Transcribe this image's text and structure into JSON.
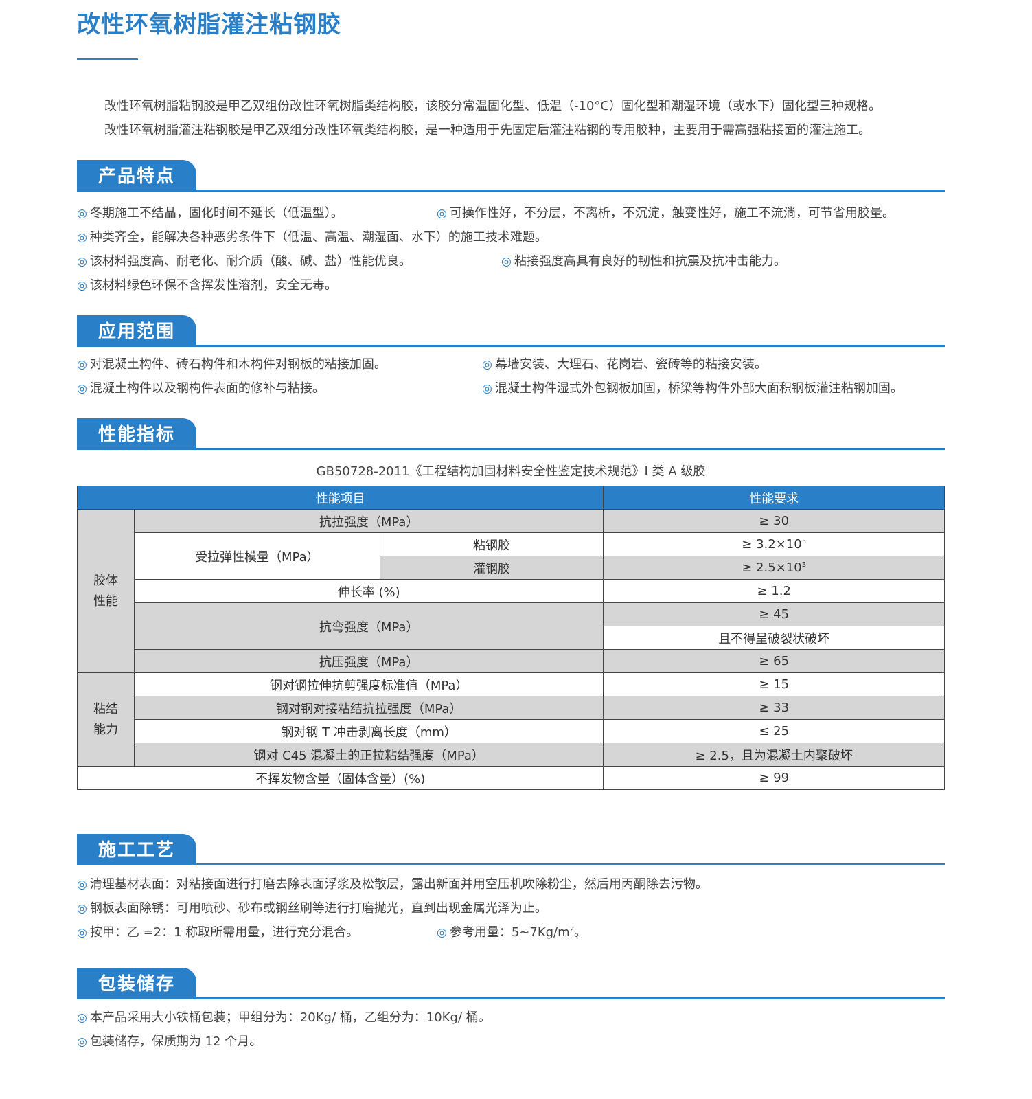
{
  "title": "改性环氧树脂灌注粘钢胶",
  "intro": [
    "改性环氧树脂粘钢胶是甲乙双组份改性环氧树脂类结构胶，该胶分常温固化型、低温（-10°C）固化型和潮湿环境（或水下）固化型三种规格。",
    "改性环氧树脂灌注粘钢胶是甲乙双组分改性环氧类结构胶，是一种适用于先固定后灌注粘钢的专用胶种，主要用于需高强粘接面的灌注施工。"
  ],
  "bullet_icon": "double-circle-icon",
  "accent_color": "#2a80c8",
  "sections": {
    "features": {
      "title": "产品特点",
      "items": [
        "冬期施工不结晶，固化时间不延长（低温型）。",
        "可操作性好，不分层，不离析，不沉淀，触变性好，施工不流淌，可节省用胶量。",
        "种类齐全，能解决各种恶劣条件下（低温、高温、潮湿面、水下）的施工技术难题。",
        "该材料强度高、耐老化、耐介质（酸、碱、盐）性能优良。",
        "粘接强度高具有良好的韧性和抗震及抗冲击能力。",
        "该材料绿色环保不含挥发性溶剂，安全无毒。"
      ]
    },
    "application": {
      "title": "应用范围",
      "items": [
        "对混凝土构件、砖石构件和木构件对钢板的粘接加固。",
        "幕墙安装、大理石、花岗岩、瓷砖等的粘接安装。",
        "混凝土构件以及钢构件表面的修补与粘接。",
        "混凝土构件湿式外包钢板加固，桥梁等构件外部大面积钢板灌注粘钢加固。"
      ]
    },
    "performance": {
      "title": "性能指标",
      "standard": "GB50728-2011《工程结构加固材料安全性鉴定技术规范》I 类 A 级胶",
      "table": {
        "headers": [
          "性能项目",
          "性能要求"
        ],
        "group1": "胶体\n性能",
        "group2": "粘结\n能力",
        "rows": {
          "tensile": [
            "抗拉强度（MPa）",
            "≥ 30"
          ],
          "modulus": "受拉弹性模量（MPa）",
          "bond_glue": [
            "粘钢胶",
            "≥ 3.2×10",
            "3"
          ],
          "pour_glue": [
            "灌钢胶",
            "≥ 2.5×10",
            "3"
          ],
          "elong": [
            "伸长率 (%)",
            "≥ 1.2"
          ],
          "bend": [
            "抗弯强度（MPa）",
            "≥ 45",
            "且不得呈破裂状破坏"
          ],
          "compress": [
            "抗压强度（MPa）",
            "≥ 65"
          ],
          "shear": [
            "钢对钢拉伸抗剪强度标准值（MPa）",
            "≥ 15"
          ],
          "butt": [
            "钢对钢对接粘结抗拉强度（MPa）",
            "≥ 33"
          ],
          "peel": [
            "钢对钢 T 冲击剥离长度（mm）",
            "≤ 25"
          ],
          "c45": [
            "钢对 C45 混凝土的正拉粘结强度（MPa）",
            "≥ 2.5，且为混凝土内聚破坏"
          ],
          "solid": [
            "不挥发物含量（固体含量）(%)",
            "≥ 99"
          ]
        }
      }
    },
    "process": {
      "title": "施工工艺",
      "items": [
        "清理基材表面：对粘接面进行打磨去除表面浮浆及松散层，露出新面并用空压机吹除粉尘，然后用丙酮除去污物。",
        "钢板表面除锈：可用喷砂、砂布或钢丝刷等进行打磨抛光，直到出现金属光泽为止。",
        "按甲：乙 =2：1 称取所需用量，进行充分混合。"
      ],
      "dosage": [
        "参考用量：5~7Kg/m",
        "2",
        "。"
      ]
    },
    "storage": {
      "title": "包装储存",
      "items": [
        "本产品采用大小铁桶包装；甲组分为：20Kg/ 桶，乙组分为：10Kg/ 桶。",
        "包装储存，保质期为 12 个月。"
      ]
    }
  }
}
